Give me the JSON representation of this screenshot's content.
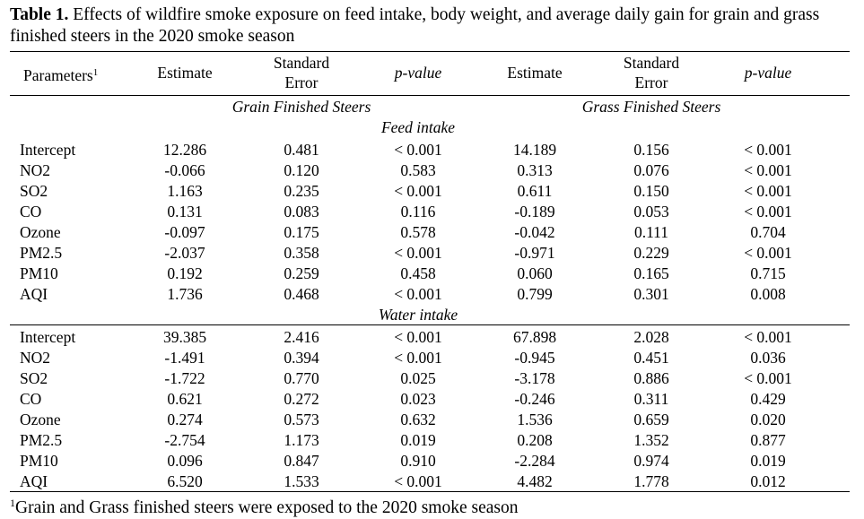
{
  "caption": {
    "label": "Table 1.",
    "text": " Effects of wildfire smoke exposure on feed intake, body weight, and average daily gain for grain and grass finished steers in the 2020 smoke season"
  },
  "headers": {
    "parameters": "Parameters",
    "parameters_sup": "1",
    "estimate": "Estimate",
    "std_error_line1": "Standard",
    "std_error_line2": "Error",
    "p_value": "p-value"
  },
  "groups": {
    "grain": "Grain Finished Steers",
    "grass": "Grass Finished Steers"
  },
  "sections": [
    {
      "title": "Feed intake",
      "rows": [
        {
          "param": "Intercept",
          "grain": [
            "12.286",
            "0.481",
            "< 0.001"
          ],
          "grass": [
            "14.189",
            "0.156",
            "< 0.001"
          ]
        },
        {
          "param": "NO2",
          "grain": [
            "-0.066",
            "0.120",
            "0.583"
          ],
          "grass": [
            "0.313",
            "0.076",
            "< 0.001"
          ]
        },
        {
          "param": "SO2",
          "grain": [
            "1.163",
            "0.235",
            "< 0.001"
          ],
          "grass": [
            "0.611",
            "0.150",
            "< 0.001"
          ]
        },
        {
          "param": "CO",
          "grain": [
            "0.131",
            "0.083",
            "0.116"
          ],
          "grass": [
            "-0.189",
            "0.053",
            "< 0.001"
          ]
        },
        {
          "param": "Ozone",
          "grain": [
            "-0.097",
            "0.175",
            "0.578"
          ],
          "grass": [
            "-0.042",
            "0.111",
            "0.704"
          ]
        },
        {
          "param": "PM2.5",
          "grain": [
            "-2.037",
            "0.358",
            "< 0.001"
          ],
          "grass": [
            "-0.971",
            "0.229",
            "< 0.001"
          ]
        },
        {
          "param": "PM10",
          "grain": [
            "0.192",
            "0.259",
            "0.458"
          ],
          "grass": [
            "0.060",
            "0.165",
            "0.715"
          ]
        },
        {
          "param": "AQI",
          "grain": [
            "1.736",
            "0.468",
            "< 0.001"
          ],
          "grass": [
            "0.799",
            "0.301",
            "0.008"
          ]
        }
      ]
    },
    {
      "title": "Water intake",
      "rows": [
        {
          "param": "Intercept",
          "grain": [
            "39.385",
            "2.416",
            "< 0.001"
          ],
          "grass": [
            "67.898",
            "2.028",
            "< 0.001"
          ]
        },
        {
          "param": "NO2",
          "grain": [
            "-1.491",
            "0.394",
            "< 0.001"
          ],
          "grass": [
            "-0.945",
            "0.451",
            "0.036"
          ]
        },
        {
          "param": "SO2",
          "grain": [
            "-1.722",
            "0.770",
            "0.025"
          ],
          "grass": [
            "-3.178",
            "0.886",
            "< 0.001"
          ]
        },
        {
          "param": "CO",
          "grain": [
            "0.621",
            "0.272",
            "0.023"
          ],
          "grass": [
            "-0.246",
            "0.311",
            "0.429"
          ]
        },
        {
          "param": "Ozone",
          "grain": [
            "0.274",
            "0.573",
            "0.632"
          ],
          "grass": [
            "1.536",
            "0.659",
            "0.020"
          ]
        },
        {
          "param": "PM2.5",
          "grain": [
            "-2.754",
            "1.173",
            "0.019"
          ],
          "grass": [
            "0.208",
            "1.352",
            "0.877"
          ]
        },
        {
          "param": "PM10",
          "grain": [
            "0.096",
            "0.847",
            "0.910"
          ],
          "grass": [
            "-2.284",
            "0.974",
            "0.019"
          ]
        },
        {
          "param": "AQI",
          "grain": [
            "6.520",
            "1.533",
            "< 0.001"
          ],
          "grass": [
            "4.482",
            "1.778",
            "0.012"
          ]
        }
      ]
    }
  ],
  "footnote": {
    "marker": "1",
    "text": "Grain and Grass finished steers were exposed to the 2020 smoke season"
  }
}
